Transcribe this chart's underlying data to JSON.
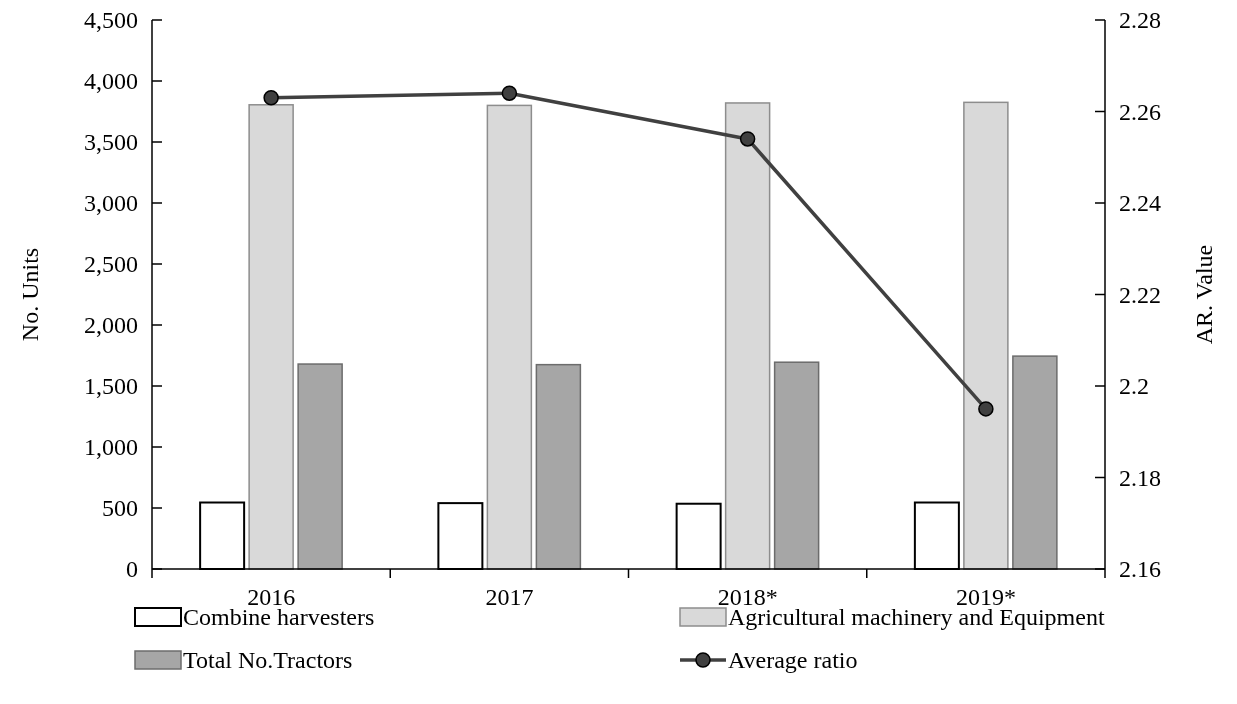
{
  "chart_data": {
    "type": "bar",
    "categories": [
      "2016",
      "2017",
      "2018*",
      "2019*"
    ],
    "ylabel": "No. Units",
    "y2label": "AR. Value",
    "ylim": [
      0,
      4500
    ],
    "yticks": [
      0,
      500,
      {
        "value": 1000,
        "label": "1,000"
      },
      {
        "value": 1500,
        "label": "1,500"
      },
      {
        "value": 2000,
        "label": "2,000"
      },
      {
        "value": 2500,
        "label": "2,500"
      },
      {
        "value": 3000,
        "label": "3,000"
      },
      {
        "value": 3500,
        "label": "3,500"
      },
      {
        "value": 4000,
        "label": "4,000"
      },
      {
        "value": 4500,
        "label": "4,500"
      }
    ],
    "y2lim": [
      2.16,
      2.28
    ],
    "y2ticks": [
      2.16,
      2.18,
      2.2,
      2.22,
      2.24,
      2.26,
      2.28
    ],
    "grid": false,
    "legend": "bottom",
    "series": [
      {
        "name": "Combine harvesters",
        "color": "#ffffff",
        "values": [
          545,
          540,
          535,
          545
        ]
      },
      {
        "name": "Agricultural machinery and Equipment",
        "color": "#d9d9d9",
        "values": [
          3805,
          3800,
          3820,
          3825
        ]
      },
      {
        "name": "Total No.Tractors",
        "color": "#a6a6a6",
        "values": [
          1680,
          1675,
          1695,
          1745
        ]
      },
      {
        "name": "Average ratio",
        "type": "line",
        "axis": "y2",
        "color": "#404040",
        "marker": "circle",
        "values": [
          2.263,
          2.264,
          2.254,
          2.195
        ]
      }
    ]
  }
}
